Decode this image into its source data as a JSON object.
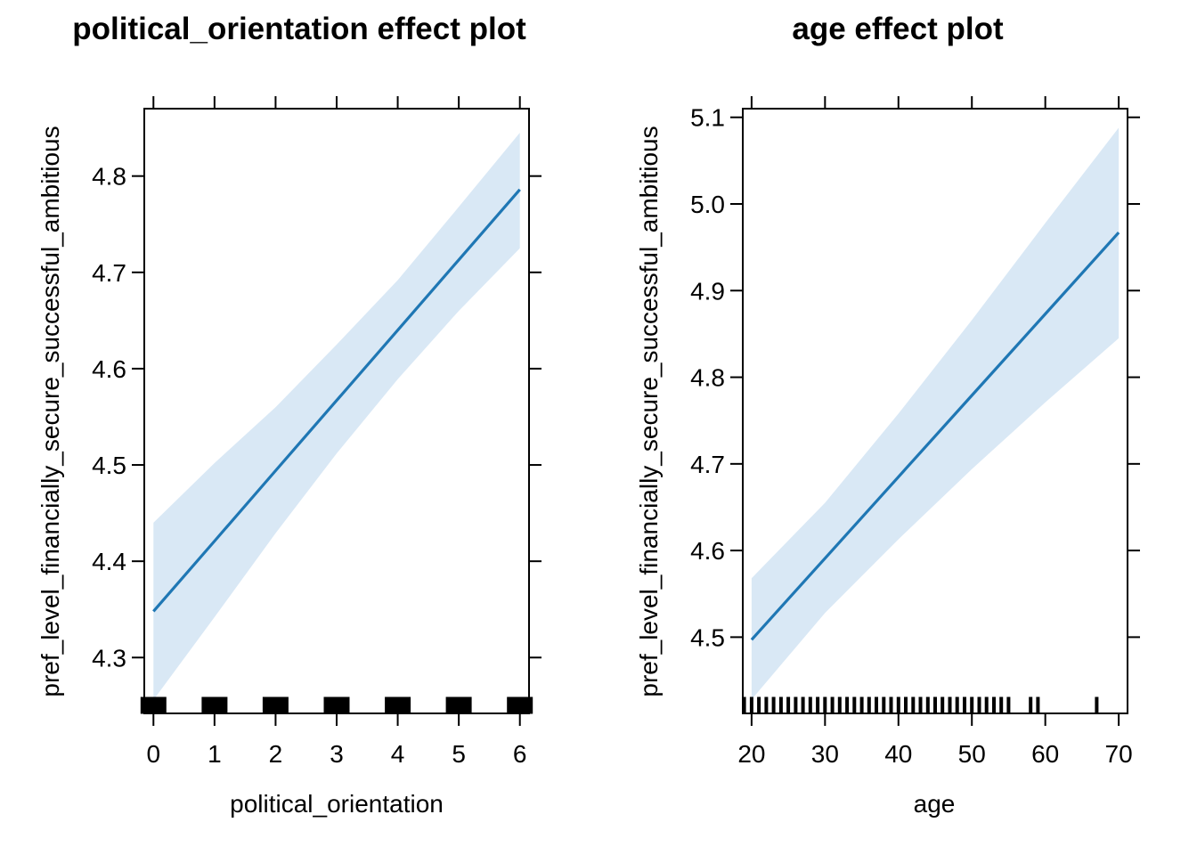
{
  "chart_data": [
    {
      "type": "line",
      "title": "political_orientation effect plot",
      "xlabel": "political_orientation",
      "ylabel": "pref_level_financially_secure_successful_ambitious",
      "xlim": [
        -0.15,
        6.15
      ],
      "ylim": [
        4.242,
        4.87
      ],
      "x_ticks": [
        0,
        1,
        2,
        3,
        4,
        5,
        6
      ],
      "x_tick_labels": [
        "0",
        "1",
        "2",
        "3",
        "4",
        "5",
        "6"
      ],
      "y_ticks": [
        4.3,
        4.4,
        4.5,
        4.6,
        4.7,
        4.8
      ],
      "y_tick_labels": [
        "4.3",
        "4.4",
        "4.5",
        "4.6",
        "4.7",
        "4.8"
      ],
      "x": [
        0,
        1,
        2,
        3,
        4,
        5,
        6
      ],
      "series": [
        {
          "fit": [
            4.348,
            4.421,
            4.494,
            4.567,
            4.64,
            4.713,
            4.786
          ],
          "lower": [
            4.256,
            4.342,
            4.429,
            4.512,
            4.589,
            4.66,
            4.725
          ],
          "upper": [
            4.44,
            4.502,
            4.56,
            4.625,
            4.692,
            4.768,
            4.845
          ]
        }
      ],
      "rug": [
        0,
        1,
        2,
        3,
        4,
        5,
        6
      ],
      "grid": false,
      "legend": "none",
      "colors": {
        "fit": "#1f77b4",
        "band": "#d9e8f5"
      }
    },
    {
      "type": "line",
      "title": "age effect plot",
      "xlabel": "age",
      "ylabel": "pref_level_financially_secure_successful_ambitious",
      "xlim": [
        18.8,
        71.2
      ],
      "ylim": [
        4.412,
        5.11
      ],
      "x_ticks": [
        20,
        30,
        40,
        50,
        60,
        70
      ],
      "x_tick_labels": [
        "20",
        "30",
        "40",
        "50",
        "60",
        "70"
      ],
      "y_ticks": [
        4.5,
        4.6,
        4.7,
        4.8,
        4.9,
        5.0,
        5.1
      ],
      "y_tick_labels": [
        "4.5",
        "4.6",
        "4.7",
        "4.8",
        "4.9",
        "5.0",
        "5.1"
      ],
      "x": [
        20,
        30,
        40,
        50,
        60,
        70
      ],
      "series": [
        {
          "fit": [
            4.497,
            4.591,
            4.685,
            4.779,
            4.873,
            4.967
          ],
          "lower": [
            4.428,
            4.528,
            4.613,
            4.694,
            4.771,
            4.845
          ],
          "upper": [
            4.568,
            4.655,
            4.758,
            4.866,
            4.978,
            5.088
          ]
        }
      ],
      "rug": [
        19,
        20,
        21,
        22,
        23,
        24,
        25,
        26,
        27,
        28,
        29,
        30,
        31,
        32,
        33,
        34,
        35,
        36,
        37,
        38,
        39,
        40,
        41,
        42,
        43,
        44,
        45,
        46,
        47,
        48,
        49,
        50,
        51,
        52,
        53,
        54,
        55,
        58,
        59,
        67
      ],
      "grid": false,
      "legend": "none",
      "colors": {
        "fit": "#1f77b4",
        "band": "#d9e8f5"
      }
    }
  ]
}
